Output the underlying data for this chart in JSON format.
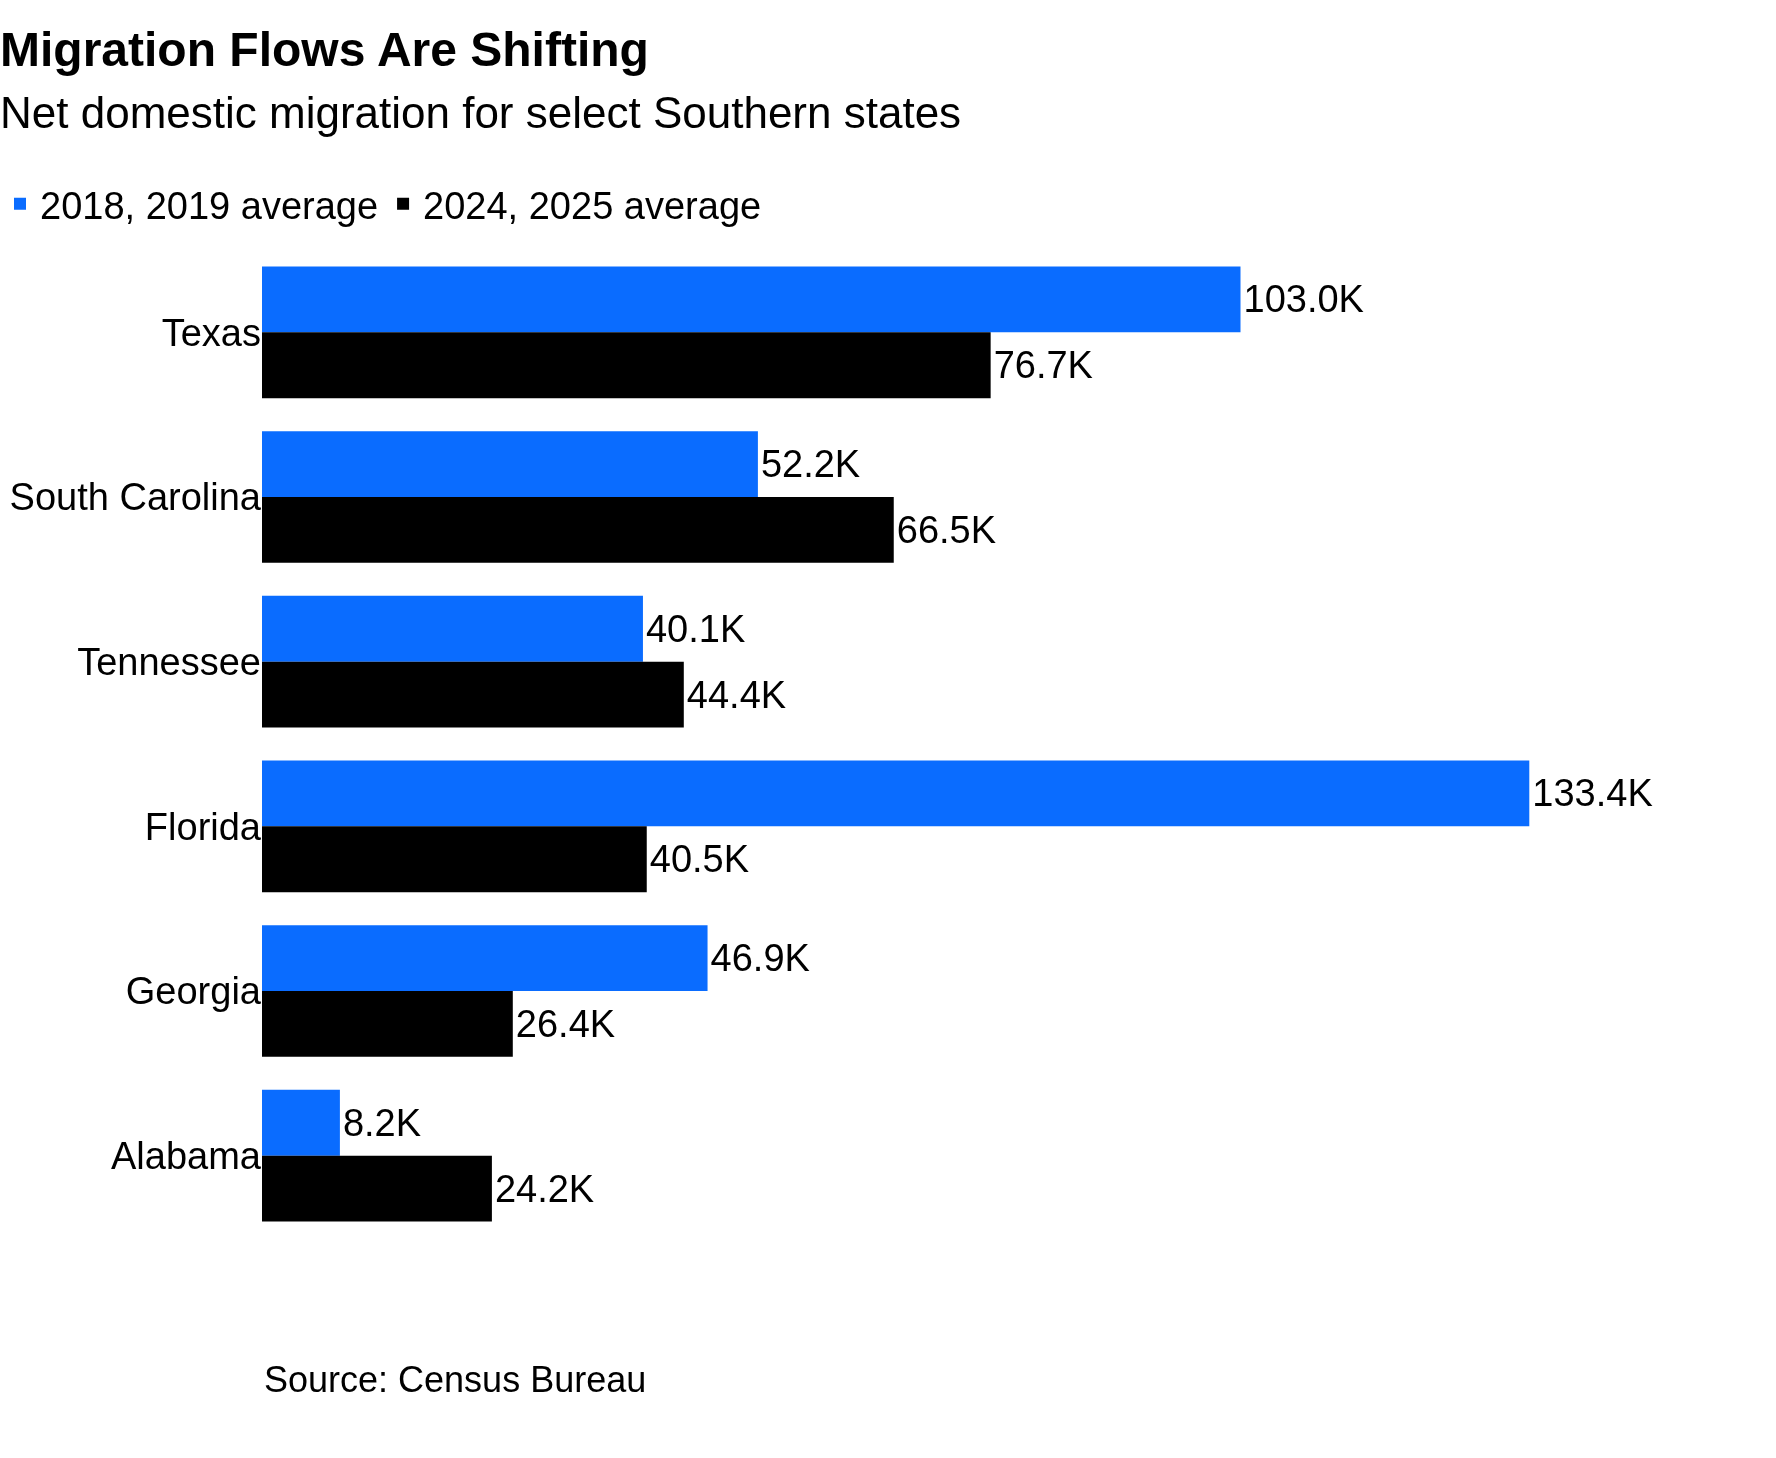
{
  "chart_data": {
    "type": "bar",
    "orientation": "horizontal",
    "title": "Migration Flows Are Shifting",
    "subtitle": "Net domestic migration for select Southern states",
    "categories": [
      "Texas",
      "South Carolina",
      "Tennessee",
      "Florida",
      "Georgia",
      "Alabama"
    ],
    "series": [
      {
        "name": "2018, 2019 average",
        "color": "#0a6cff",
        "values": [
          103.0,
          52.2,
          40.1,
          133.4,
          46.9,
          8.2
        ],
        "value_labels": [
          "103.0K",
          "52.2K",
          "40.1K",
          "133.4K",
          "46.9K",
          "8.2K"
        ]
      },
      {
        "name": "2024, 2025 average",
        "color": "#000000",
        "values": [
          76.7,
          66.5,
          44.4,
          40.5,
          26.4,
          24.2
        ],
        "value_labels": [
          "76.7K",
          "66.5K",
          "44.4K",
          "40.5K",
          "26.4K",
          "24.2K"
        ]
      }
    ],
    "legend": "top left",
    "annotations": [
      "Source: Census Bureau"
    ]
  }
}
